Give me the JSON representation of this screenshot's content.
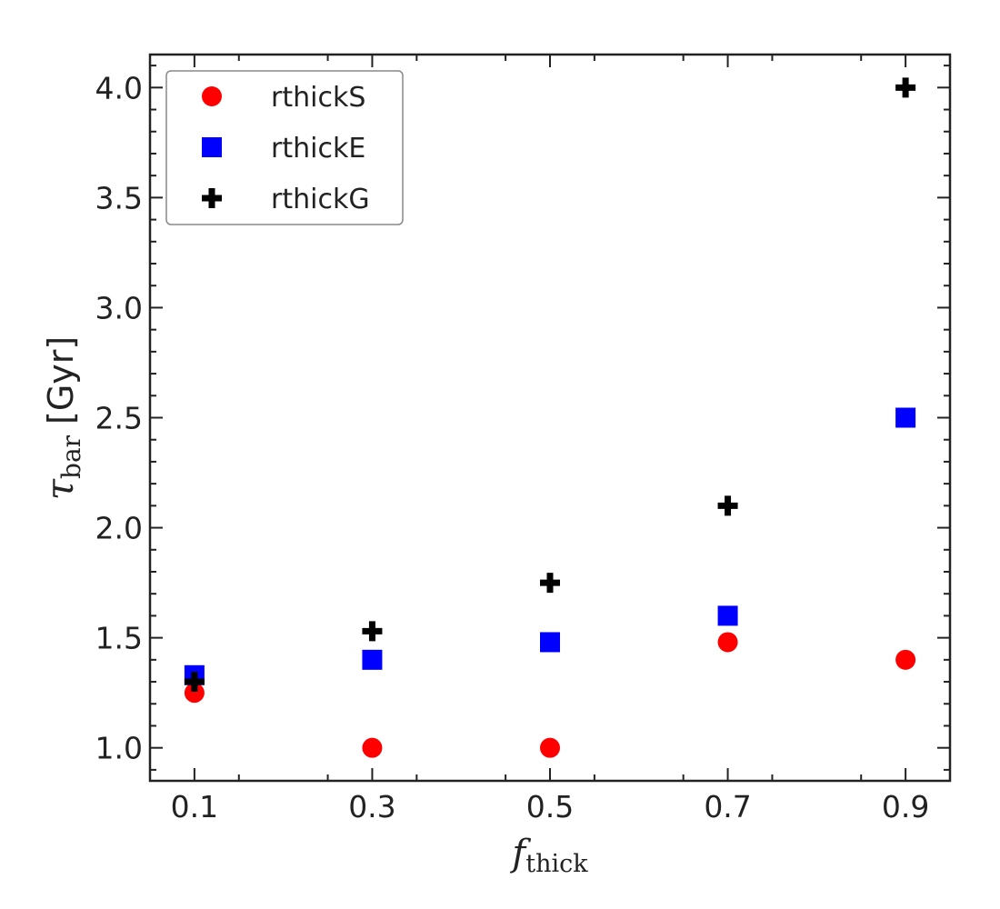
{
  "chart_data": {
    "type": "scatter",
    "title": "",
    "xlabel": {
      "symbol": "f",
      "subscript": "thick"
    },
    "ylabel": {
      "symbol": "τ",
      "subscript": "bar",
      "unit": "[Gyr]"
    },
    "xlim": [
      0.05,
      0.95
    ],
    "ylim": [
      0.85,
      4.15
    ],
    "x_ticks": [
      "0.1",
      "0.3",
      "0.5",
      "0.7",
      "0.9"
    ],
    "y_ticks": [
      "1.0",
      "1.5",
      "2.0",
      "2.5",
      "3.0",
      "3.5",
      "4.0"
    ],
    "x": [
      0.1,
      0.3,
      0.5,
      0.7,
      0.9
    ],
    "legend_position": "top-left",
    "grid": false,
    "series": [
      {
        "name": "rthickS",
        "marker": "circle",
        "color": "#ff0000",
        "values": [
          1.25,
          1.0,
          1.0,
          1.48,
          1.4
        ]
      },
      {
        "name": "rthickE",
        "marker": "square",
        "color": "#0000ff",
        "values": [
          1.33,
          1.4,
          1.48,
          1.6,
          2.5
        ]
      },
      {
        "name": "rthickG",
        "marker": "plus",
        "color": "#000000",
        "values": [
          1.3,
          1.53,
          1.75,
          2.1,
          4.0
        ]
      }
    ]
  }
}
